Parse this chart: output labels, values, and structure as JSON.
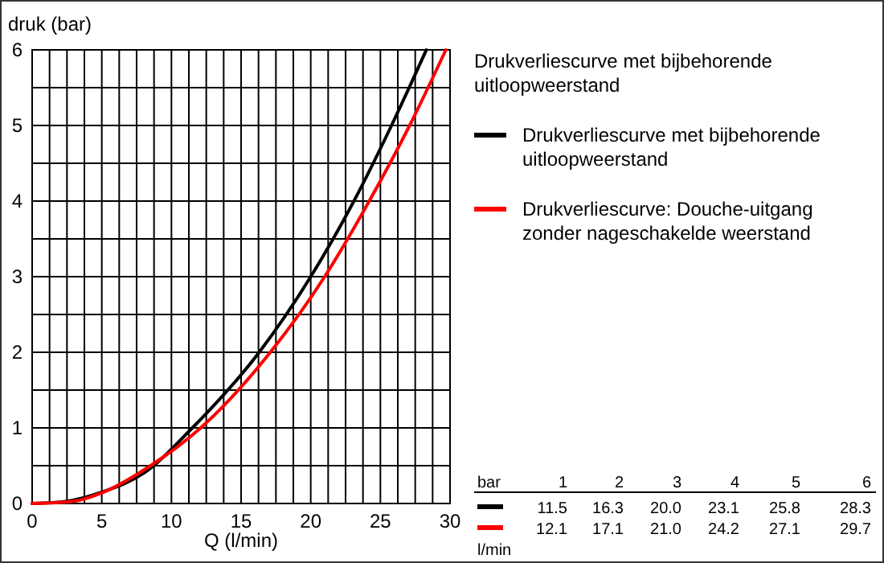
{
  "chart_data": [
    {
      "type": "line",
      "xlabel": "Q (l/min)",
      "ylabel": "druk (bar)",
      "legend_title": "Drukverliescurve met bijbehorende uitloopweerstand",
      "legend": "top right",
      "grid": true,
      "marker": "none",
      "line_style": "solid",
      "xlim": [
        0,
        30
      ],
      "ylim": [
        0,
        6
      ],
      "xticks": [
        0,
        {
          "value": 1.25,
          "label": null
        },
        {
          "value": 2.5,
          "label": null
        },
        {
          "value": 3.75,
          "label": null
        },
        5,
        {
          "value": 6.25,
          "label": null
        },
        {
          "value": 7.5,
          "label": null
        },
        {
          "value": 8.75,
          "label": null
        },
        10,
        {
          "value": 11.25,
          "label": null
        },
        {
          "value": 12.5,
          "label": null
        },
        {
          "value": 13.75,
          "label": null
        },
        15,
        {
          "value": 16.25,
          "label": null
        },
        {
          "value": 17.5,
          "label": null
        },
        {
          "value": 18.75,
          "label": null
        },
        20,
        {
          "value": 21.25,
          "label": null
        },
        {
          "value": 22.5,
          "label": null
        },
        {
          "value": 23.75,
          "label": null
        },
        25,
        {
          "value": 26.25,
          "label": null
        },
        {
          "value": 27.5,
          "label": null
        },
        {
          "value": 28.75,
          "label": null
        },
        30
      ],
      "yticks": [
        0,
        {
          "value": 0.5,
          "label": null
        },
        1,
        {
          "value": 1.5,
          "label": null
        },
        2,
        {
          "value": 2.5,
          "label": null
        },
        3,
        {
          "value": 3.5,
          "label": null
        },
        4,
        {
          "value": 4.5,
          "label": null
        },
        5,
        {
          "value": 5.5,
          "label": null
        },
        6
      ],
      "series": [
        {
          "name": "Drukverliescurve met bijbehorende uitloopweerstand",
          "color": "#000000",
          "x": [
            0,
            2.5,
            5,
            8,
            11.5,
            16.3,
            20,
            23.1,
            25.8,
            28.3
          ],
          "values": [
            0,
            0.03,
            0.15,
            0.4,
            1,
            2,
            3,
            4,
            5,
            6
          ]
        },
        {
          "name": "Drukverliescurve: Douche-uitgang zonder nageschakelde weerstand",
          "color": "#ff0000",
          "x": [
            0,
            3,
            5,
            8.5,
            12.1,
            17.1,
            21,
            24.2,
            27.1,
            29.7
          ],
          "values": [
            0,
            0.03,
            0.14,
            0.5,
            1,
            2,
            3,
            4,
            5,
            6
          ]
        }
      ]
    },
    {
      "type": "heatmap",
      "annotations": [
        "bar",
        "l/min"
      ],
      "categories": [
        "1",
        "2",
        "3",
        "4",
        "5",
        "6"
      ],
      "y_categories": [
        null,
        null
      ],
      "colors": [
        "#000000",
        "#ff0000"
      ],
      "cells": [
        [
          11.5,
          16.3,
          20,
          23.1,
          25.8,
          28.3
        ],
        [
          12.1,
          17.1,
          21,
          24.2,
          27.1,
          29.7
        ]
      ],
      "cell_labels": [
        [
          "11.5",
          "16.3",
          "20.0",
          "23.1",
          "25.8",
          "28.3"
        ],
        [
          "12.1",
          "17.1",
          "21.0",
          "24.2",
          "27.1",
          "29.7"
        ]
      ]
    }
  ]
}
